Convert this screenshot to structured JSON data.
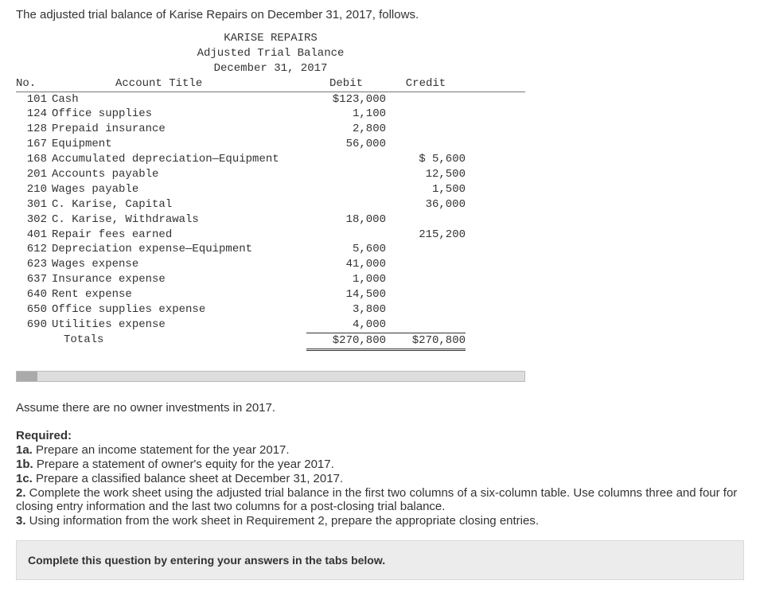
{
  "intro": "The adjusted trial balance of Karise Repairs on December 31, 2017, follows.",
  "tb": {
    "company": "KARISE REPAIRS",
    "title": "Adjusted Trial Balance",
    "date": "December 31, 2017",
    "col_no": "No.",
    "col_account": "Account Title",
    "col_debit": "Debit",
    "col_credit": "Credit",
    "rows": [
      {
        "no": "101",
        "account": "Cash",
        "debit": "$123,000",
        "credit": ""
      },
      {
        "no": "124",
        "account": "Office supplies",
        "debit": "1,100",
        "credit": ""
      },
      {
        "no": "128",
        "account": "Prepaid insurance",
        "debit": "2,800",
        "credit": ""
      },
      {
        "no": "167",
        "account": "Equipment",
        "debit": "56,000",
        "credit": ""
      },
      {
        "no": "168",
        "account": "Accumulated depreciation—Equipment",
        "debit": "",
        "credit": "$  5,600"
      },
      {
        "no": "201",
        "account": "Accounts payable",
        "debit": "",
        "credit": "12,500"
      },
      {
        "no": "210",
        "account": "Wages payable",
        "debit": "",
        "credit": "1,500"
      },
      {
        "no": "301",
        "account": "C. Karise, Capital",
        "debit": "",
        "credit": "36,000"
      },
      {
        "no": "302",
        "account": "C. Karise, Withdrawals",
        "debit": "18,000",
        "credit": ""
      },
      {
        "no": "401",
        "account": "Repair fees earned",
        "debit": "",
        "credit": "215,200"
      },
      {
        "no": "612",
        "account": "Depreciation expense—Equipment",
        "debit": "5,600",
        "credit": ""
      },
      {
        "no": "623",
        "account": "Wages expense",
        "debit": "41,000",
        "credit": ""
      },
      {
        "no": "637",
        "account": "Insurance expense",
        "debit": "1,000",
        "credit": ""
      },
      {
        "no": "640",
        "account": "Rent expense",
        "debit": "14,500",
        "credit": ""
      },
      {
        "no": "650",
        "account": "Office supplies expense",
        "debit": "3,800",
        "credit": ""
      },
      {
        "no": "690",
        "account": "Utilities expense",
        "debit": "4,000",
        "credit": ""
      }
    ],
    "totals_label": "Totals",
    "totals_debit": "$270,800",
    "totals_credit": "$270,800"
  },
  "assume": "Assume there are no owner investments in 2017.",
  "required": {
    "head": "Required:",
    "r1a_n": "1a.",
    "r1a": " Prepare an income statement for the year 2017.",
    "r1b_n": "1b.",
    "r1b": " Prepare a statement of owner's equity for the year 2017.",
    "r1c_n": "1c.",
    "r1c": " Prepare a classified balance sheet at December 31, 2017.",
    "r2_n": "2.",
    "r2": " Complete the work sheet using the adjusted trial balance in the first two columns of a six-column table. Use columns three and four for closing entry information and the last two columns for a post-closing trial balance.",
    "r3_n": "3.",
    "r3": " Using information from the work sheet in Requirement 2, prepare the appropriate closing entries."
  },
  "answer_prompt": "Complete this question by entering your answers in the tabs below."
}
